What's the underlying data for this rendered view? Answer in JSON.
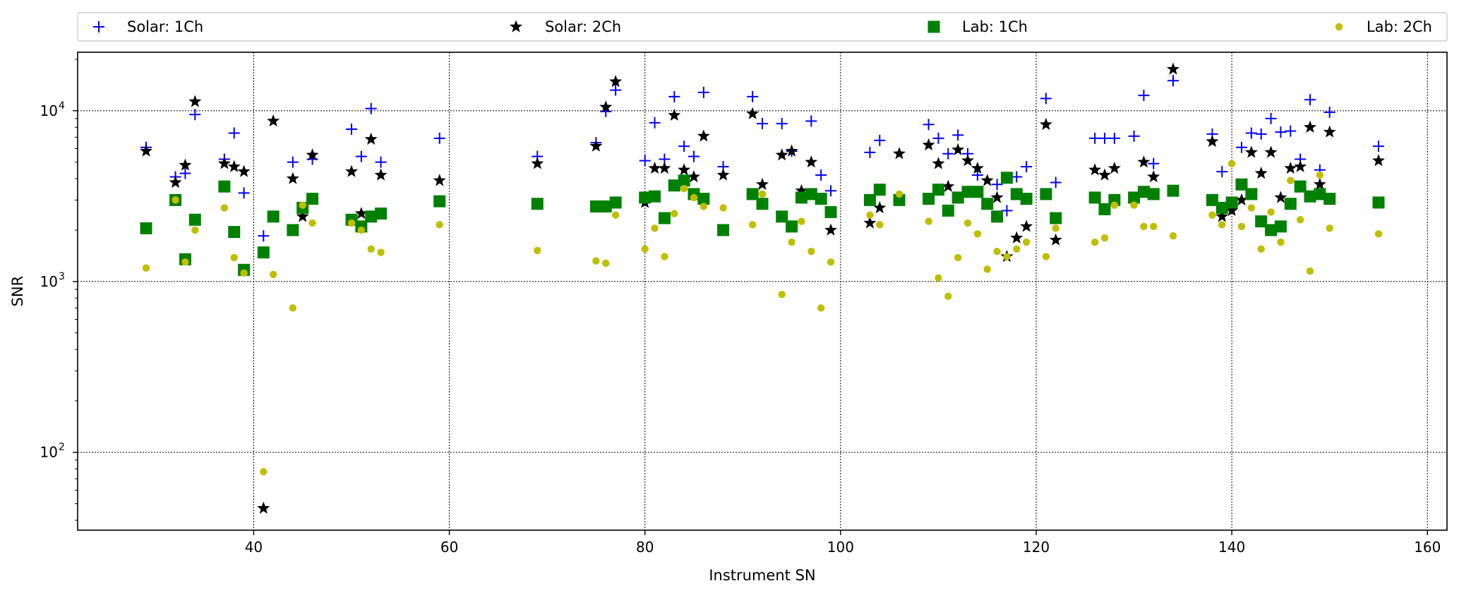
{
  "chart_data": {
    "type": "scatter",
    "title": "",
    "xlabel": "Instrument SN",
    "ylabel": "SNR",
    "xlim": [
      22,
      162
    ],
    "ylim": [
      35,
      22000
    ],
    "yscale": "log",
    "grid": true,
    "legend_placement": "top, outside plot, single row",
    "xticks": [
      40,
      60,
      80,
      100,
      120,
      140,
      160
    ],
    "yticks": [
      {
        "value": 100,
        "base": "10",
        "exp": "2"
      },
      {
        "value": 1000,
        "base": "10",
        "exp": "3"
      },
      {
        "value": 10000,
        "base": "10",
        "exp": "4"
      }
    ],
    "series": [
      {
        "name": "Solar: 1Ch",
        "marker": "plus",
        "color": "#0000ff",
        "points": [
          [
            29,
            6100
          ],
          [
            32,
            4100
          ],
          [
            33,
            4300
          ],
          [
            34,
            9500
          ],
          [
            37,
            5200
          ],
          [
            38,
            7400
          ],
          [
            39,
            3300
          ],
          [
            41,
            1850
          ],
          [
            44,
            5000
          ],
          [
            46,
            5200
          ],
          [
            50,
            7800
          ],
          [
            51,
            5400
          ],
          [
            52,
            10300
          ],
          [
            53,
            5000
          ],
          [
            59,
            6900
          ],
          [
            69,
            5400
          ],
          [
            75,
            6500
          ],
          [
            76,
            9900
          ],
          [
            77,
            13200
          ],
          [
            80,
            5100
          ],
          [
            81,
            8500
          ],
          [
            82,
            5200
          ],
          [
            83,
            12100
          ],
          [
            84,
            6200
          ],
          [
            85,
            5400
          ],
          [
            86,
            12800
          ],
          [
            88,
            4700
          ],
          [
            91,
            12100
          ],
          [
            92,
            8400
          ],
          [
            94,
            8400
          ],
          [
            95,
            5800
          ],
          [
            97,
            8700
          ],
          [
            98,
            4200
          ],
          [
            99,
            3400
          ],
          [
            103,
            5700
          ],
          [
            104,
            6700
          ],
          [
            109,
            8300
          ],
          [
            110,
            6900
          ],
          [
            111,
            5600
          ],
          [
            112,
            7200
          ],
          [
            113,
            5600
          ],
          [
            114,
            4200
          ],
          [
            116,
            3700
          ],
          [
            117,
            2600
          ],
          [
            118,
            4100
          ],
          [
            119,
            4700
          ],
          [
            121,
            11800
          ],
          [
            122,
            3800
          ],
          [
            126,
            6900
          ],
          [
            127,
            6900
          ],
          [
            128,
            6900
          ],
          [
            130,
            7100
          ],
          [
            131,
            12300
          ],
          [
            132,
            4900
          ],
          [
            134,
            15000
          ],
          [
            138,
            7300
          ],
          [
            139,
            4400
          ],
          [
            141,
            6100
          ],
          [
            142,
            7400
          ],
          [
            143,
            7300
          ],
          [
            144,
            9000
          ],
          [
            145,
            7500
          ],
          [
            146,
            7600
          ],
          [
            147,
            5200
          ],
          [
            148,
            11600
          ],
          [
            149,
            4500
          ],
          [
            150,
            9800
          ],
          [
            155,
            6200
          ]
        ]
      },
      {
        "name": "Solar: 2Ch",
        "marker": "star",
        "color": "#000000",
        "points": [
          [
            29,
            5800
          ],
          [
            32,
            3800
          ],
          [
            33,
            4800
          ],
          [
            34,
            11300
          ],
          [
            37,
            4900
          ],
          [
            38,
            4700
          ],
          [
            39,
            4400
          ],
          [
            41,
            47
          ],
          [
            42,
            8700
          ],
          [
            44,
            4000
          ],
          [
            45,
            2400
          ],
          [
            46,
            5500
          ],
          [
            50,
            4400
          ],
          [
            51,
            2500
          ],
          [
            52,
            6800
          ],
          [
            53,
            4200
          ],
          [
            59,
            3900
          ],
          [
            69,
            4900
          ],
          [
            75,
            6200
          ],
          [
            76,
            10500
          ],
          [
            77,
            14800
          ],
          [
            80,
            2900
          ],
          [
            81,
            4600
          ],
          [
            82,
            4600
          ],
          [
            83,
            9400
          ],
          [
            84,
            4500
          ],
          [
            85,
            4100
          ],
          [
            86,
            7100
          ],
          [
            88,
            4200
          ],
          [
            91,
            9600
          ],
          [
            92,
            3700
          ],
          [
            94,
            5500
          ],
          [
            95,
            5800
          ],
          [
            96,
            3400
          ],
          [
            97,
            5000
          ],
          [
            99,
            2000
          ],
          [
            103,
            2200
          ],
          [
            104,
            2700
          ],
          [
            106,
            5600
          ],
          [
            109,
            6300
          ],
          [
            110,
            4900
          ],
          [
            111,
            3600
          ],
          [
            112,
            5900
          ],
          [
            113,
            5100
          ],
          [
            114,
            4600
          ],
          [
            115,
            3900
          ],
          [
            116,
            3100
          ],
          [
            117,
            1400
          ],
          [
            118,
            1800
          ],
          [
            119,
            2100
          ],
          [
            121,
            8300
          ],
          [
            122,
            1750
          ],
          [
            126,
            4500
          ],
          [
            127,
            4200
          ],
          [
            128,
            4600
          ],
          [
            131,
            5000
          ],
          [
            132,
            4100
          ],
          [
            134,
            17500
          ],
          [
            138,
            6600
          ],
          [
            139,
            2400
          ],
          [
            140,
            2600
          ],
          [
            141,
            3000
          ],
          [
            142,
            5700
          ],
          [
            143,
            4300
          ],
          [
            144,
            5700
          ],
          [
            145,
            3100
          ],
          [
            146,
            4600
          ],
          [
            147,
            4700
          ],
          [
            148,
            8000
          ],
          [
            149,
            3700
          ],
          [
            150,
            7500
          ],
          [
            155,
            5100
          ]
        ]
      },
      {
        "name": "Lab: 1Ch",
        "marker": "square",
        "color": "#008000",
        "points": [
          [
            29,
            2050
          ],
          [
            32,
            3000
          ],
          [
            33,
            1350
          ],
          [
            34,
            2300
          ],
          [
            37,
            3600
          ],
          [
            38,
            1950
          ],
          [
            39,
            1170
          ],
          [
            41,
            1480
          ],
          [
            42,
            2400
          ],
          [
            44,
            2000
          ],
          [
            45,
            2700
          ],
          [
            46,
            3050
          ],
          [
            50,
            2300
          ],
          [
            51,
            2100
          ],
          [
            52,
            2400
          ],
          [
            53,
            2500
          ],
          [
            59,
            2950
          ],
          [
            69,
            2850
          ],
          [
            75,
            2750
          ],
          [
            76,
            2750
          ],
          [
            77,
            2900
          ],
          [
            80,
            3100
          ],
          [
            81,
            3150
          ],
          [
            82,
            2350
          ],
          [
            83,
            3650
          ],
          [
            84,
            3900
          ],
          [
            85,
            3250
          ],
          [
            86,
            3050
          ],
          [
            88,
            2000
          ],
          [
            91,
            3250
          ],
          [
            92,
            2850
          ],
          [
            94,
            2400
          ],
          [
            95,
            2100
          ],
          [
            96,
            3100
          ],
          [
            97,
            3250
          ],
          [
            98,
            3050
          ],
          [
            99,
            2550
          ],
          [
            103,
            3000
          ],
          [
            104,
            3450
          ],
          [
            106,
            3000
          ],
          [
            109,
            3050
          ],
          [
            110,
            3450
          ],
          [
            111,
            2600
          ],
          [
            112,
            3100
          ],
          [
            113,
            3350
          ],
          [
            114,
            3350
          ],
          [
            115,
            2850
          ],
          [
            116,
            2400
          ],
          [
            117,
            4050
          ],
          [
            118,
            3250
          ],
          [
            119,
            3050
          ],
          [
            121,
            3250
          ],
          [
            122,
            2350
          ],
          [
            126,
            3100
          ],
          [
            127,
            2650
          ],
          [
            128,
            3000
          ],
          [
            130,
            3100
          ],
          [
            131,
            3350
          ],
          [
            132,
            3250
          ],
          [
            134,
            3400
          ],
          [
            138,
            3000
          ],
          [
            139,
            2700
          ],
          [
            140,
            2900
          ],
          [
            141,
            3700
          ],
          [
            142,
            3250
          ],
          [
            143,
            2250
          ],
          [
            144,
            2000
          ],
          [
            145,
            2100
          ],
          [
            146,
            2850
          ],
          [
            147,
            3600
          ],
          [
            148,
            3150
          ],
          [
            149,
            3250
          ],
          [
            150,
            3050
          ],
          [
            155,
            2900
          ]
        ]
      },
      {
        "name": "Lab: 2Ch",
        "marker": "circle",
        "color": "#bfbf00",
        "points": [
          [
            29,
            1200
          ],
          [
            32,
            3000
          ],
          [
            33,
            1300
          ],
          [
            34,
            2000
          ],
          [
            37,
            2700
          ],
          [
            38,
            1380
          ],
          [
            39,
            1120
          ],
          [
            41,
            77
          ],
          [
            42,
            1100
          ],
          [
            44,
            700
          ],
          [
            45,
            2800
          ],
          [
            46,
            2200
          ],
          [
            50,
            2200
          ],
          [
            51,
            2000
          ],
          [
            52,
            1550
          ],
          [
            53,
            1480
          ],
          [
            59,
            2150
          ],
          [
            69,
            1520
          ],
          [
            75,
            1320
          ],
          [
            76,
            1280
          ],
          [
            77,
            2450
          ],
          [
            80,
            1550
          ],
          [
            81,
            2050
          ],
          [
            82,
            1400
          ],
          [
            83,
            2500
          ],
          [
            84,
            3500
          ],
          [
            85,
            3100
          ],
          [
            86,
            2750
          ],
          [
            88,
            2700
          ],
          [
            91,
            2150
          ],
          [
            92,
            3250
          ],
          [
            94,
            840
          ],
          [
            95,
            1700
          ],
          [
            96,
            2250
          ],
          [
            97,
            1500
          ],
          [
            98,
            700
          ],
          [
            99,
            1300
          ],
          [
            103,
            2450
          ],
          [
            104,
            2150
          ],
          [
            106,
            3250
          ],
          [
            109,
            2250
          ],
          [
            110,
            1050
          ],
          [
            111,
            820
          ],
          [
            112,
            1380
          ],
          [
            113,
            2200
          ],
          [
            114,
            1900
          ],
          [
            115,
            1180
          ],
          [
            116,
            1500
          ],
          [
            117,
            1400
          ],
          [
            118,
            1550
          ],
          [
            119,
            1700
          ],
          [
            121,
            1400
          ],
          [
            122,
            2050
          ],
          [
            126,
            1700
          ],
          [
            127,
            1800
          ],
          [
            128,
            2800
          ],
          [
            130,
            2800
          ],
          [
            131,
            2100
          ],
          [
            132,
            2100
          ],
          [
            134,
            1850
          ],
          [
            138,
            2450
          ],
          [
            139,
            2150
          ],
          [
            140,
            4900
          ],
          [
            141,
            2100
          ],
          [
            142,
            2700
          ],
          [
            143,
            1550
          ],
          [
            144,
            2550
          ],
          [
            145,
            1700
          ],
          [
            146,
            3900
          ],
          [
            147,
            2300
          ],
          [
            148,
            1150
          ],
          [
            149,
            4200
          ],
          [
            150,
            2050
          ],
          [
            155,
            1900
          ]
        ]
      }
    ]
  }
}
